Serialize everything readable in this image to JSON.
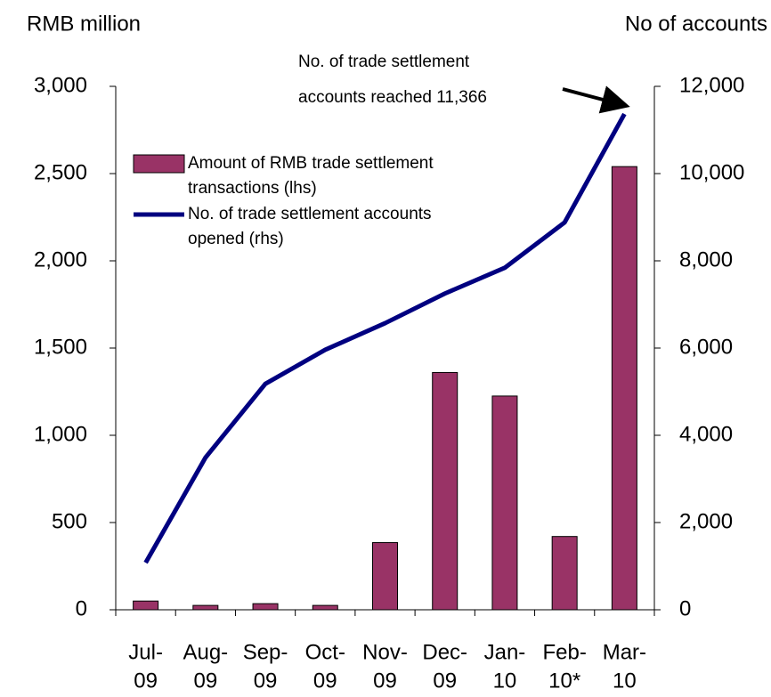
{
  "chart_data": {
    "type": "bar_line",
    "y_label": "RMB million",
    "y2_label": "No of accounts",
    "annotation": [
      "No. of trade settlement",
      "accounts reached 11,366"
    ],
    "categories": [
      [
        "Jul-",
        "09"
      ],
      [
        "Aug-",
        "09"
      ],
      [
        "Sep-",
        "09"
      ],
      [
        "Oct-",
        "09"
      ],
      [
        "Nov-",
        "09"
      ],
      [
        "Dec-",
        "09"
      ],
      [
        "Jan-",
        "10"
      ],
      [
        "Feb-",
        "10*"
      ],
      [
        "Mar-",
        "10"
      ]
    ],
    "series": [
      {
        "name": [
          "Amount of RMB trade settlement",
          "transactions (lhs)"
        ],
        "type": "bar",
        "color": "#993366",
        "values": [
          50,
          25,
          35,
          25,
          385,
          1360,
          1225,
          420,
          2540
        ]
      },
      {
        "name": [
          "No. of trade settlement accounts",
          "opened (rhs)"
        ],
        "type": "line",
        "axis": "y2",
        "color": "#000080",
        "values": [
          1080,
          3490,
          5180,
          5960,
          6570,
          7250,
          7840,
          8880,
          11366
        ]
      }
    ],
    "ylim": [
      0,
      3000
    ],
    "yticks": [
      0,
      500,
      {
        "value": 1000,
        "label": "1,000"
      },
      {
        "value": 1500,
        "label": "1,500"
      },
      {
        "value": 2000,
        "label": "2,000"
      },
      {
        "value": 2500,
        "label": "2,500"
      },
      {
        "value": 3000,
        "label": "3,000"
      }
    ],
    "y2lim": [
      0,
      12000
    ],
    "y2ticks": [
      0,
      {
        "value": 2000,
        "label": "2,000"
      },
      {
        "value": 4000,
        "label": "4,000"
      },
      {
        "value": 6000,
        "label": "6,000"
      },
      {
        "value": 8000,
        "label": "8,000"
      },
      {
        "value": 10000,
        "label": "10,000"
      },
      {
        "value": 12000,
        "label": "12,000"
      }
    ]
  }
}
